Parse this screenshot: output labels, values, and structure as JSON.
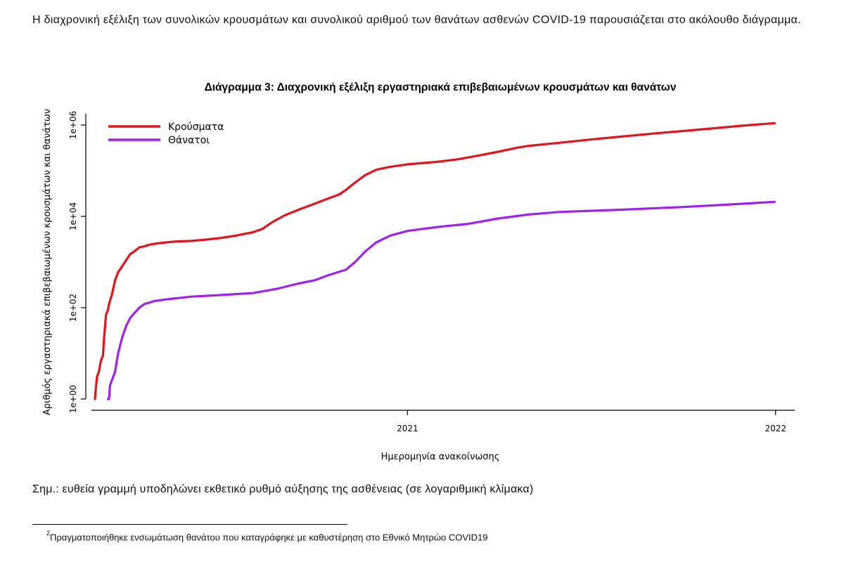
{
  "intro_text": "Η διαχρονική εξέλιξη των συνολικών κρουσμάτων και συνολικού αριθμού των θανάτων ασθενών COVID-19 παρουσιάζεται στο ακόλουθο διάγραμμα.",
  "note": "Σημ.: ευθεία γραμμή υποδηλώνει εκθετικό ρυθμό αύξησης της ασθένειας (σε λογαριθμική κλίμακα)",
  "footnote": {
    "marker": "2",
    "text": "Πραγματοποιήθηκε ενσωμάτωση θανάτου που καταγράφηκε με καθυστέρηση στο Εθνικό Μητρώο COVID19"
  },
  "colors": {
    "cases": "#e3141c",
    "deaths": "#a020f0",
    "axis": "#000000"
  },
  "chart_data": {
    "type": "line",
    "title": "Διάγραμμα 3: Διαχρονική εξέλιξη εργαστηριακά επιβεβαιωμένων κρουσμάτων και θανάτων",
    "xlabel": "Ημερομηνία ανακοίνωσης",
    "ylabel": "Αριθμός εργαστηριακά επιβεβαιωμένων κρουσμάτων και θανάτων",
    "y_scale": "log",
    "xlim": [
      "2020-02-17",
      "2022-01-20"
    ],
    "ylim": [
      1,
      1000000
    ],
    "x_ticks": [
      "2021-01-01",
      "2022-01-01"
    ],
    "x_tick_labels": [
      "2021",
      "2022"
    ],
    "y_ticks": [
      1,
      100,
      10000,
      1000000
    ],
    "y_tick_labels": [
      "1e+00",
      "1e+02",
      "1e+04",
      "1e+06"
    ],
    "legend_position": "top-left",
    "grid": false,
    "series": [
      {
        "name": "Κρούσματα",
        "color": "#e3141c",
        "points": [
          [
            "2020-02-26",
            1
          ],
          [
            "2020-02-28",
            3
          ],
          [
            "2020-03-01",
            4
          ],
          [
            "2020-03-03",
            7
          ],
          [
            "2020-03-05",
            9
          ],
          [
            "2020-03-06",
            20
          ],
          [
            "2020-03-08",
            70
          ],
          [
            "2020-03-10",
            90
          ],
          [
            "2020-03-11",
            120
          ],
          [
            "2020-03-14",
            200
          ],
          [
            "2020-03-17",
            400
          ],
          [
            "2020-03-20",
            600
          ],
          [
            "2020-03-24",
            800
          ],
          [
            "2020-03-28",
            1100
          ],
          [
            "2020-04-01",
            1500
          ],
          [
            "2020-04-05",
            1700
          ],
          [
            "2020-04-10",
            2100
          ],
          [
            "2020-04-15",
            2200
          ],
          [
            "2020-04-20",
            2400
          ],
          [
            "2020-04-30",
            2600
          ],
          [
            "2020-05-15",
            2800
          ],
          [
            "2020-06-01",
            2900
          ],
          [
            "2020-06-15",
            3100
          ],
          [
            "2020-07-01",
            3400
          ],
          [
            "2020-07-15",
            3800
          ],
          [
            "2020-08-01",
            4500
          ],
          [
            "2020-08-10",
            5300
          ],
          [
            "2020-08-20",
            7500
          ],
          [
            "2020-09-01",
            10500
          ],
          [
            "2020-09-15",
            14000
          ],
          [
            "2020-10-01",
            19000
          ],
          [
            "2020-10-15",
            25000
          ],
          [
            "2020-10-25",
            30000
          ],
          [
            "2020-11-01",
            38000
          ],
          [
            "2020-11-10",
            55000
          ],
          [
            "2020-11-20",
            80000
          ],
          [
            "2020-12-01",
            105000
          ],
          [
            "2020-12-15",
            122000
          ],
          [
            "2021-01-01",
            138000
          ],
          [
            "2021-01-20",
            150000
          ],
          [
            "2021-02-01",
            158000
          ],
          [
            "2021-02-20",
            178000
          ],
          [
            "2021-03-10",
            210000
          ],
          [
            "2021-04-01",
            260000
          ],
          [
            "2021-04-20",
            320000
          ],
          [
            "2021-05-01",
            350000
          ],
          [
            "2021-06-01",
            410000
          ],
          [
            "2021-07-01",
            480000
          ],
          [
            "2021-08-01",
            560000
          ],
          [
            "2021-09-01",
            650000
          ],
          [
            "2021-10-01",
            740000
          ],
          [
            "2021-11-01",
            850000
          ],
          [
            "2021-12-01",
            980000
          ],
          [
            "2021-12-31",
            1100000
          ]
        ]
      },
      {
        "name": "Θάνατοι",
        "color": "#a020f0",
        "points": [
          [
            "2020-03-10",
            1
          ],
          [
            "2020-03-11",
            1
          ],
          [
            "2020-03-12",
            2
          ],
          [
            "2020-03-15",
            3
          ],
          [
            "2020-03-17",
            4
          ],
          [
            "2020-03-20",
            10
          ],
          [
            "2020-03-22",
            15
          ],
          [
            "2020-03-24",
            22
          ],
          [
            "2020-03-28",
            40
          ],
          [
            "2020-04-01",
            60
          ],
          [
            "2020-04-05",
            75
          ],
          [
            "2020-04-10",
            100
          ],
          [
            "2020-04-15",
            120
          ],
          [
            "2020-04-25",
            140
          ],
          [
            "2020-05-10",
            155
          ],
          [
            "2020-06-01",
            175
          ],
          [
            "2020-07-01",
            190
          ],
          [
            "2020-08-01",
            210
          ],
          [
            "2020-08-25",
            260
          ],
          [
            "2020-09-15",
            340
          ],
          [
            "2020-10-01",
            400
          ],
          [
            "2020-10-15",
            520
          ],
          [
            "2020-11-01",
            680
          ],
          [
            "2020-11-10",
            1000
          ],
          [
            "2020-11-20",
            1700
          ],
          [
            "2020-12-01",
            2700
          ],
          [
            "2020-12-15",
            3800
          ],
          [
            "2021-01-01",
            4800
          ],
          [
            "2021-02-01",
            5900
          ],
          [
            "2021-03-01",
            6800
          ],
          [
            "2021-04-01",
            9000
          ],
          [
            "2021-05-01",
            11000
          ],
          [
            "2021-06-01",
            12500
          ],
          [
            "2021-08-01",
            14000
          ],
          [
            "2021-10-01",
            16000
          ],
          [
            "2021-12-01",
            19000
          ],
          [
            "2021-12-31",
            20800
          ]
        ]
      }
    ]
  }
}
